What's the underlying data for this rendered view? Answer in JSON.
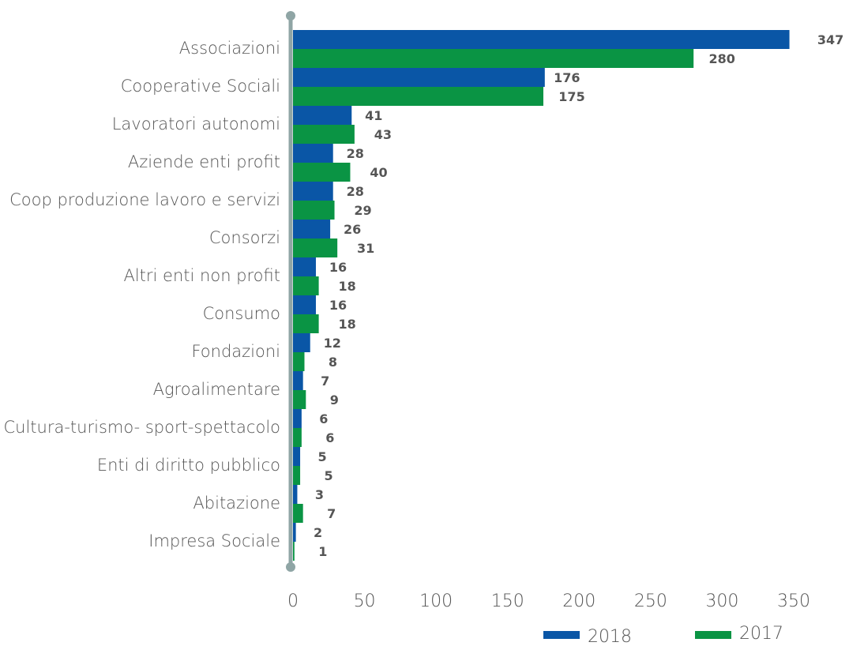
{
  "chart_data": {
    "type": "bar",
    "orientation": "horizontal",
    "categories": [
      "Associazioni",
      "Cooperative Sociali",
      "Lavoratori autonomi",
      "Aziende enti profit",
      "Coop produzione lavoro e servizi",
      "Consorzi",
      "Altri enti non profit",
      "Consumo",
      "Fondazioni",
      "Agroalimentare",
      "Cultura-turismo- sport-spettacolo",
      "Enti di diritto pubblico",
      "Abitazione",
      "Impresa Sociale"
    ],
    "series": [
      {
        "name": "2018",
        "color": "#0a56a6",
        "values": [
          347,
          176,
          41,
          28,
          28,
          26,
          16,
          16,
          12,
          7,
          6,
          5,
          3,
          2
        ]
      },
      {
        "name": "2017",
        "color": "#0a9444",
        "values": [
          280,
          175,
          43,
          40,
          29,
          31,
          18,
          18,
          8,
          9,
          6,
          5,
          7,
          1
        ]
      }
    ],
    "xlim": [
      0,
      350
    ],
    "xticks": [
      "0",
      "50",
      "100",
      "150",
      "200",
      "250",
      "300",
      "350"
    ],
    "xtick_values": [
      0,
      50,
      100,
      150,
      200,
      250,
      300,
      350
    ],
    "axis_color": "#8fa5a5",
    "grid": false,
    "legend_position": "bottom-right",
    "legend_order": [
      "2018",
      "2017"
    ]
  }
}
